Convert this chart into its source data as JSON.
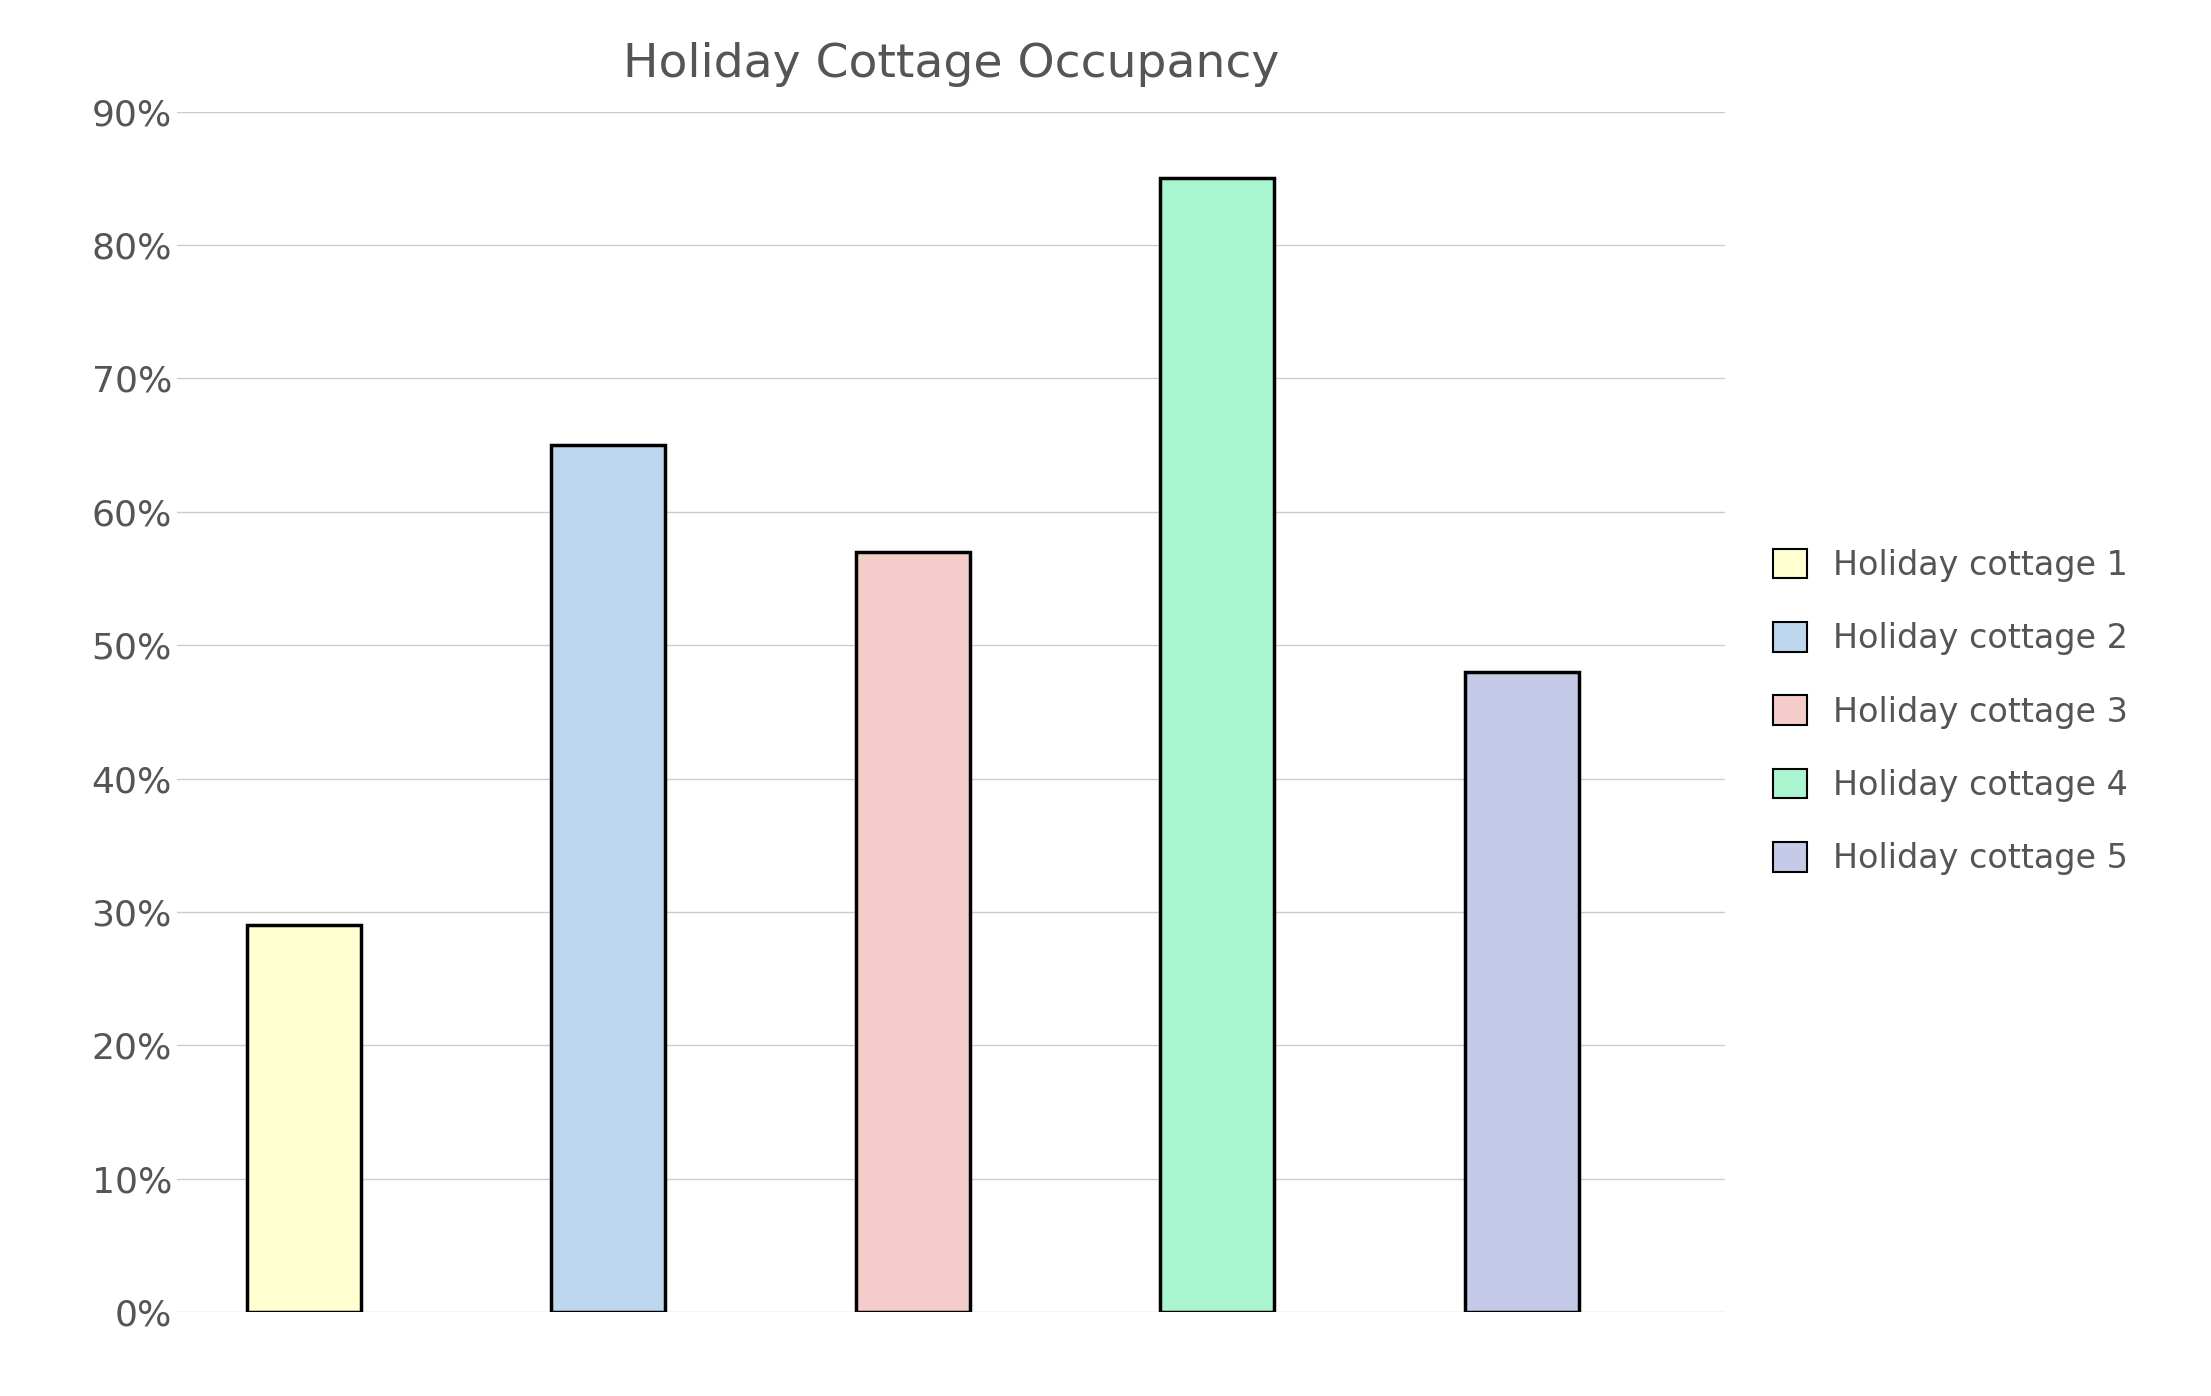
{
  "title": "Holiday Cottage Occupancy",
  "categories": [
    "1",
    "2",
    "3",
    "4",
    "5"
  ],
  "values": [
    29,
    65,
    57,
    85,
    48
  ],
  "bar_colors": [
    "#FFFFD0",
    "#BDD7EE",
    "#F4CCCA",
    "#A9F5D0",
    "#C5CAE9"
  ],
  "legend_labels": [
    "Holiday cottage 1",
    "Holiday cottage 2",
    "Holiday cottage 3",
    "Holiday cottage 4",
    "Holiday cottage 5"
  ],
  "ylim": [
    0,
    90
  ],
  "yticks": [
    0,
    10,
    20,
    30,
    40,
    50,
    60,
    70,
    80,
    90
  ],
  "ytick_labels": [
    "0%",
    "10%",
    "20%",
    "30%",
    "40%",
    "50%",
    "60%",
    "70%",
    "80%",
    "90%"
  ],
  "background_color": "#FFFFFF",
  "grid_color": "#CCCCCC",
  "title_fontsize": 34,
  "tick_fontsize": 26,
  "legend_fontsize": 24,
  "bar_edgecolor": "#000000",
  "bar_linewidth": 2.5,
  "text_color": "#555555",
  "bar_width": 0.45,
  "bar_positions": [
    0.5,
    1.7,
    2.9,
    4.1,
    5.3
  ]
}
